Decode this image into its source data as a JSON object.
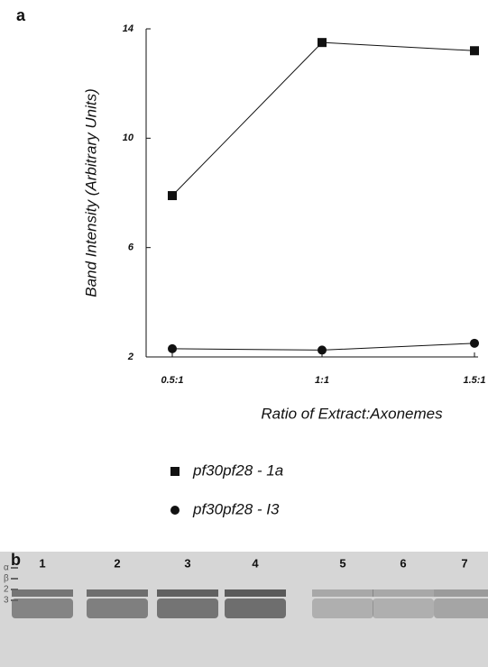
{
  "chart_data": {
    "type": "line",
    "panel_label": "a",
    "ylabel": "Band Intensity (Arbitrary Units)",
    "xlabel": "Ratio of Extract:Axonemes",
    "categories": [
      "0.5:1",
      "1:1",
      "1.5:1"
    ],
    "series": [
      {
        "name": "pf30pf28 - 1a",
        "marker": "square",
        "color": "#111111",
        "values": [
          7.9,
          13.5,
          13.2
        ]
      },
      {
        "name": "pf30pf28 - I3",
        "marker": "circle",
        "color": "#111111",
        "values": [
          2.3,
          2.25,
          2.5
        ]
      }
    ],
    "ylim": [
      2,
      14
    ],
    "yticks": [
      2,
      6,
      10,
      14
    ]
  },
  "gel": {
    "panel_label": "b",
    "lanes": [
      "1",
      "2",
      "3",
      "4",
      "5",
      "6",
      "7"
    ],
    "band_labels": [
      "α",
      "β",
      "2",
      "3"
    ]
  }
}
